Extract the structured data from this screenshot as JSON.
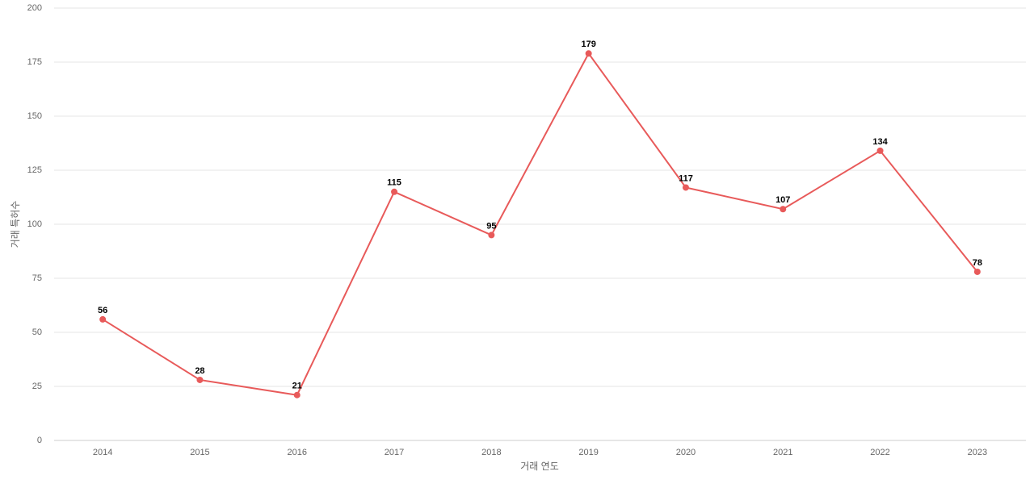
{
  "chart_data": {
    "type": "line",
    "x_label": "거래 연도",
    "y_label": "거래 특허수",
    "categories": [
      "2014",
      "2015",
      "2016",
      "2017",
      "2018",
      "2019",
      "2020",
      "2021",
      "2022",
      "2023"
    ],
    "series": [
      {
        "name": "거래 특허수",
        "color": "#e85a5a",
        "values": [
          56,
          28,
          21,
          115,
          95,
          179,
          117,
          107,
          134,
          78
        ]
      }
    ],
    "ylim": [
      0,
      200
    ],
    "yticks": [
      0,
      25,
      50,
      75,
      100,
      125,
      150,
      175,
      200
    ],
    "grid": true
  }
}
